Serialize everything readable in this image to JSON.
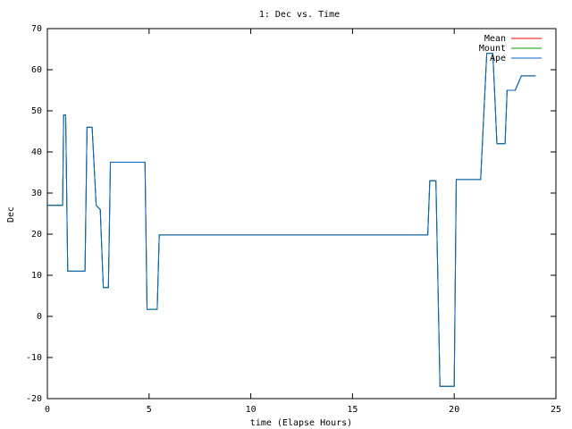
{
  "chart_data": {
    "type": "line",
    "title": "1: Dec vs. Time",
    "x_label": "time (Elapse Hours)",
    "y_label": "Dec",
    "x": [
      0,
      0.75,
      0.8,
      0.9,
      1.0,
      1.85,
      1.95,
      2.2,
      2.4,
      2.6,
      2.75,
      3.0,
      3.1,
      4.8,
      4.9,
      5.4,
      5.5,
      18.7,
      18.8,
      19.1,
      19.3,
      20.0,
      20.1,
      21.3,
      21.6,
      21.9,
      22.1,
      22.5,
      22.6,
      23.0,
      23.3,
      24.0
    ],
    "series": [
      {
        "name": "Mean",
        "color": "#ff0000",
        "values": [
          27,
          27,
          49,
          49,
          11,
          11,
          46,
          46,
          27,
          26,
          7,
          7,
          37.5,
          37.5,
          1.7,
          1.7,
          19.8,
          19.8,
          33,
          33,
          -17,
          -17,
          33.3,
          33.3,
          64,
          64,
          42,
          42,
          55,
          55,
          58.5,
          58.5
        ]
      },
      {
        "name": "Mount",
        "color": "#00a000",
        "values": [
          27,
          27,
          49,
          49,
          11,
          11,
          46,
          46,
          27,
          26,
          7,
          7,
          37.5,
          37.5,
          1.7,
          1.7,
          19.8,
          19.8,
          33,
          33,
          -17,
          -17,
          33.3,
          33.3,
          64,
          64,
          42,
          42,
          55,
          55,
          58.5,
          58.5
        ]
      },
      {
        "name": "Ape",
        "color": "#0066cc",
        "values": [
          27,
          27,
          49,
          49,
          11,
          11,
          46,
          46,
          27,
          26,
          7,
          7,
          37.5,
          37.5,
          1.7,
          1.7,
          19.8,
          19.8,
          33,
          33,
          -17,
          -17,
          33.3,
          33.3,
          64,
          64,
          42,
          42,
          55,
          55,
          58.5,
          58.5
        ]
      }
    ],
    "xlim": [
      0,
      25
    ],
    "xticks": [
      0,
      5,
      10,
      15,
      20,
      25
    ],
    "ylim": [
      -20,
      70
    ],
    "yticks": [
      -20,
      -10,
      0,
      10,
      20,
      30,
      40,
      50,
      60,
      70
    ],
    "grid": false,
    "legend": "top-right"
  }
}
